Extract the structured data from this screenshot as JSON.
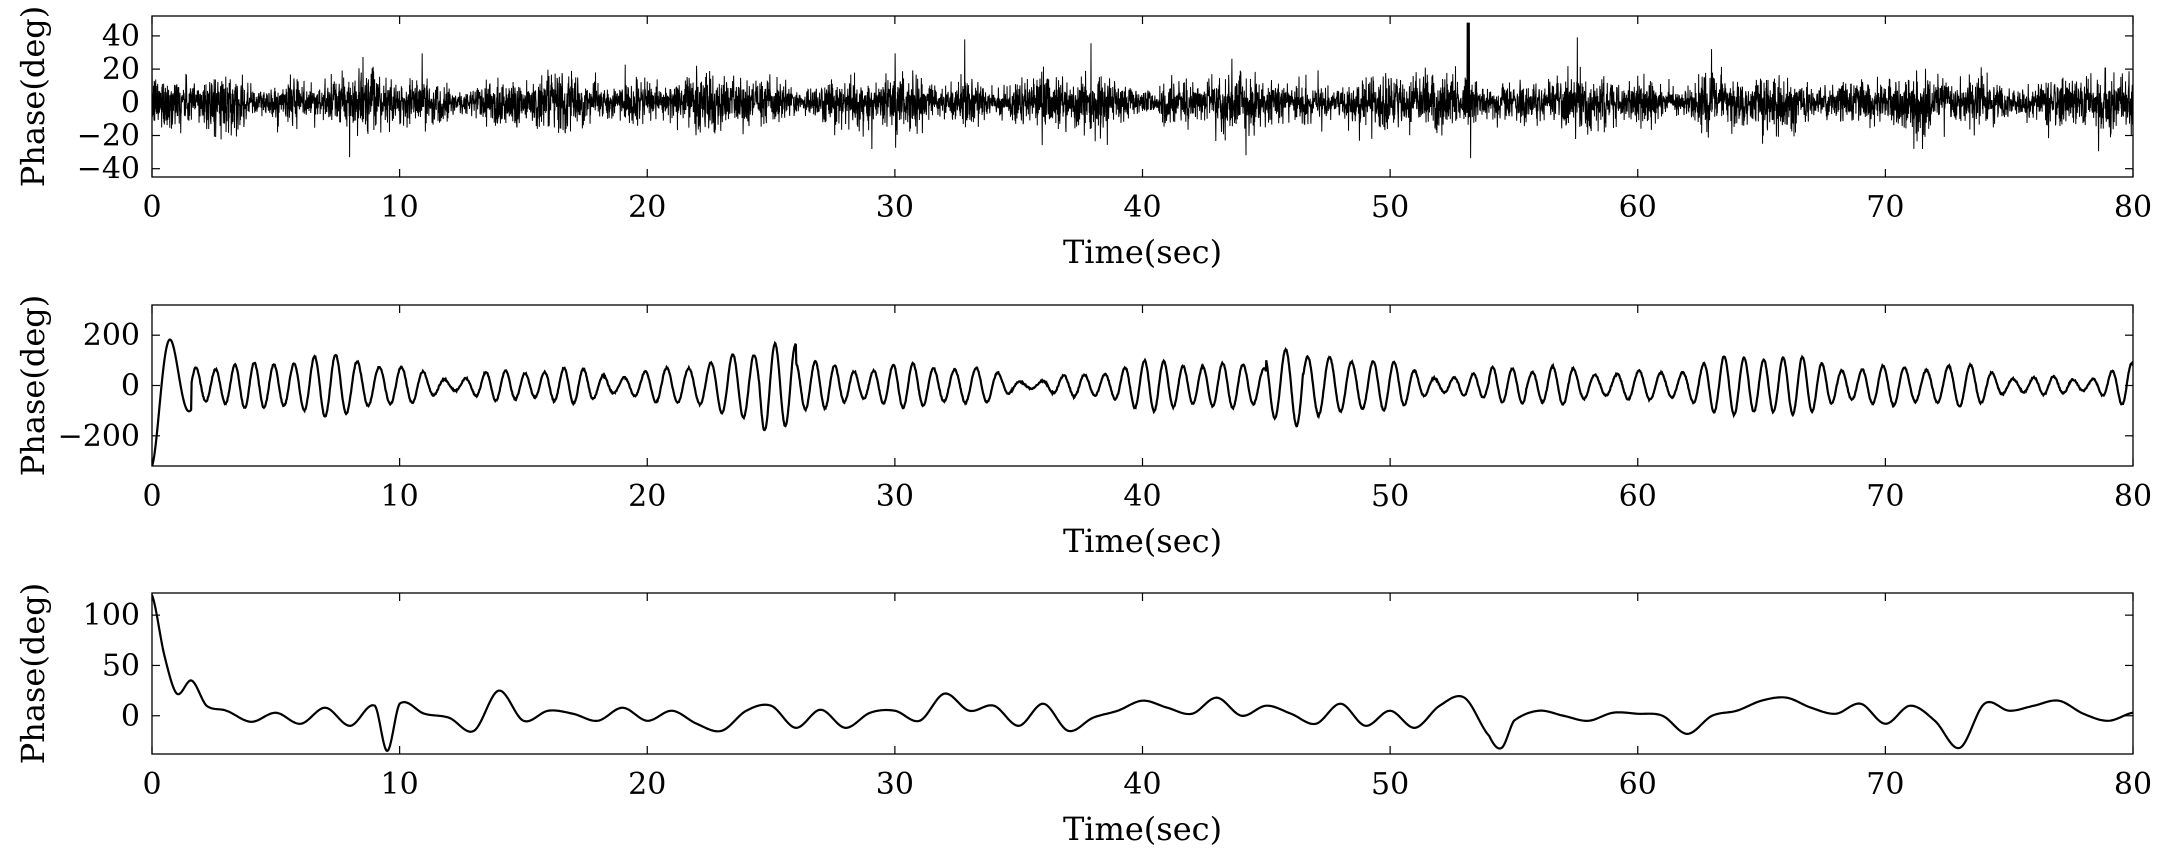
{
  "chart_data": [
    {
      "type": "line",
      "signal": "noise",
      "xlabel": "Time(sec)",
      "ylabel": "Phase(deg)",
      "xlim": [
        0,
        80
      ],
      "ylim": [
        -45,
        52
      ],
      "xticks": [
        0,
        10,
        20,
        30,
        40,
        50,
        60,
        70,
        80
      ],
      "yticks": [
        -40,
        -20,
        0,
        20,
        40
      ],
      "grid": false,
      "color": "#000000",
      "description": "dense broadband noise, mostly within about ±15 deg, peaks near ±35 deg, spike to about 50 deg near t=53 s",
      "series": [
        {
          "sample_dt": 0.01,
          "typical_amplitude": 12,
          "peak_amplitude": 50
        }
      ]
    },
    {
      "type": "line",
      "signal": "oscillation",
      "xlabel": "Time(sec)",
      "ylabel": "Phase(deg)",
      "xlim": [
        0,
        80
      ],
      "ylim": [
        -320,
        320
      ],
      "xticks": [
        0,
        10,
        20,
        30,
        40,
        50,
        60,
        70,
        80
      ],
      "yticks": [
        -200,
        0,
        200
      ],
      "grid": false,
      "color": "#000000",
      "description": "initial transient from about -320 to 320 deg in the first second, then oscillation at roughly 1.2 Hz with amplitude mostly 40 to 120 deg",
      "series": [
        {
          "sample_dt": 0.02,
          "frequency_hz": 1.2,
          "amplitude_range": [
            40,
            180
          ],
          "initial_peak": 320
        }
      ]
    },
    {
      "type": "line",
      "signal": "smooth",
      "xlabel": "Time(sec)",
      "ylabel": "Phase(deg)",
      "xlim": [
        0,
        80
      ],
      "ylim": [
        -38,
        122
      ],
      "xticks": [
        0,
        10,
        20,
        30,
        40,
        50,
        60,
        70,
        80
      ],
      "yticks": [
        0,
        50,
        100
      ],
      "grid": false,
      "color": "#000000",
      "description": "decays from about 120 deg at t=0 to about 20 deg by t=1 s, then low-frequency wandering between about -35 and 35 deg",
      "series": [
        {
          "x": [
            0,
            0.5,
            1,
            1.6,
            2.2,
            3,
            4,
            5,
            6,
            7,
            8,
            9,
            9.5,
            10,
            11,
            12,
            13,
            14,
            15,
            16,
            17,
            18,
            19,
            20,
            21,
            22,
            23,
            24,
            25,
            26,
            27,
            28,
            29,
            30,
            31,
            32,
            33,
            34,
            35,
            36,
            37,
            38,
            39,
            40,
            41,
            42,
            43,
            44,
            45,
            46,
            47,
            48,
            49,
            50,
            51,
            52,
            53,
            54,
            54.5,
            55,
            56,
            57,
            58,
            59,
            60,
            61,
            62,
            63,
            64,
            65,
            66,
            67,
            68,
            69,
            70,
            71,
            72,
            73,
            74,
            75,
            76,
            77,
            78,
            79,
            80
          ],
          "y": [
            120,
            60,
            22,
            35,
            10,
            5,
            -6,
            3,
            -8,
            8,
            -10,
            10,
            -35,
            12,
            2,
            -2,
            -15,
            25,
            -5,
            5,
            2,
            -5,
            8,
            -5,
            5,
            -8,
            -15,
            5,
            10,
            -12,
            6,
            -12,
            3,
            5,
            -5,
            22,
            5,
            10,
            -10,
            12,
            -15,
            -2,
            5,
            15,
            8,
            2,
            18,
            0,
            10,
            2,
            -8,
            12,
            -10,
            5,
            -12,
            10,
            18,
            -20,
            -32,
            -5,
            5,
            0,
            -5,
            3,
            2,
            0,
            -18,
            0,
            5,
            15,
            18,
            8,
            2,
            12,
            -8,
            10,
            -5,
            -32,
            12,
            5,
            10,
            15,
            2,
            -5,
            3
          ]
        }
      ]
    }
  ]
}
